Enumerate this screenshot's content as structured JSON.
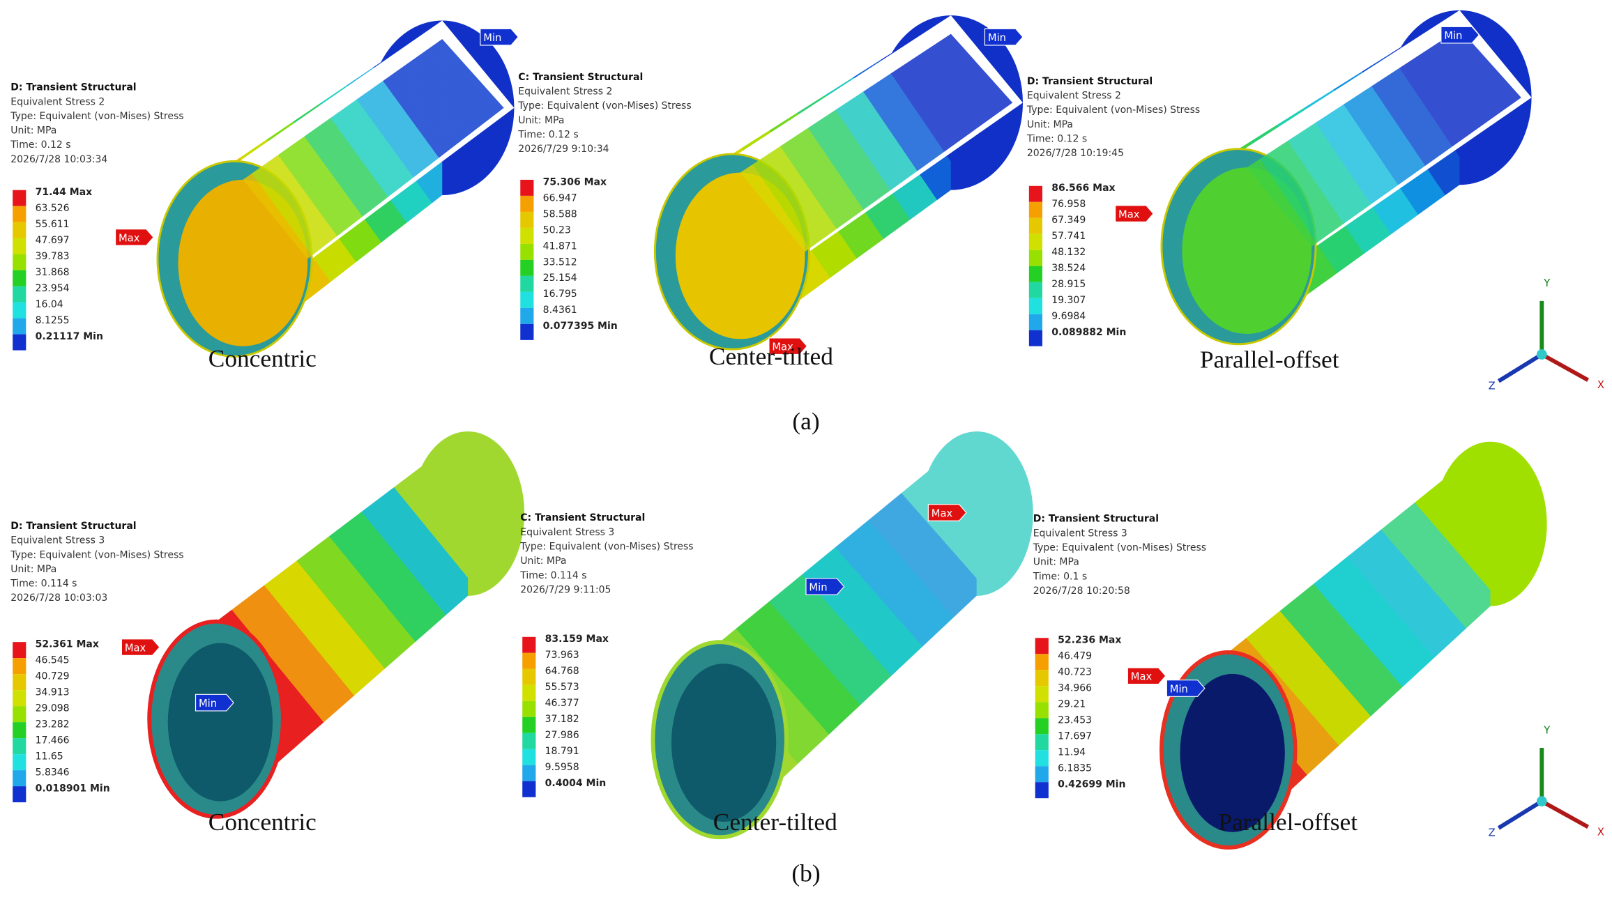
{
  "figure": {
    "rows": [
      {
        "label": "(a)",
        "axes": [
          "X",
          "Y",
          "Z"
        ],
        "panels": [
          {
            "header": [
              "D: Transient Structural",
              "Equivalent Stress 2",
              "Type: Equivalent (von-Mises) Stress",
              "Unit: MPa",
              "Time: 0.12 s",
              "2026/7/28 10:03:34"
            ],
            "legend": [
              "71.44 Max",
              "63.526",
              "55.611",
              "47.697",
              "39.783",
              "31.868",
              "23.954",
              "16.04",
              "8.1255",
              "0.21117 Min"
            ],
            "max_tag": "Max",
            "min_tag": "Min",
            "caption": "Concentric"
          },
          {
            "header": [
              "C: Transient Structural",
              "Equivalent Stress 2",
              "Type: Equivalent (von-Mises) Stress",
              "Unit: MPa",
              "Time: 0.12 s",
              "2026/7/29 9:10:34"
            ],
            "legend": [
              "75.306 Max",
              "66.947",
              "58.588",
              "50.23",
              "41.871",
              "33.512",
              "25.154",
              "16.795",
              "8.4361",
              "0.077395 Min"
            ],
            "max_tag": "Max",
            "min_tag": "Min",
            "caption": "Center-tilted"
          },
          {
            "header": [
              "D: Transient Structural",
              "Equivalent Stress 2",
              "Type: Equivalent (von-Mises) Stress",
              "Unit: MPa",
              "Time: 0.12 s",
              "2026/7/28 10:19:45"
            ],
            "legend": [
              "86.566 Max",
              "76.958",
              "67.349",
              "57.741",
              "48.132",
              "38.524",
              "28.915",
              "19.307",
              "9.6984",
              "0.089882 Min"
            ],
            "max_tag": "Max",
            "min_tag": "Min",
            "caption": "Parallel-offset"
          }
        ]
      },
      {
        "label": "(b)",
        "axes": [
          "X",
          "Y",
          "Z"
        ],
        "panels": [
          {
            "header": [
              "D: Transient Structural",
              "Equivalent Stress 3",
              "Type: Equivalent (von-Mises) Stress",
              "Unit: MPa",
              "Time: 0.114 s",
              "2026/7/28 10:03:03"
            ],
            "legend": [
              "52.361 Max",
              "46.545",
              "40.729",
              "34.913",
              "29.098",
              "23.282",
              "17.466",
              "11.65",
              "5.8346",
              "0.018901 Min"
            ],
            "max_tag": "Max",
            "min_tag": "Min",
            "caption": "Concentric"
          },
          {
            "header": [
              "C: Transient Structural",
              "Equivalent Stress 3",
              "Type: Equivalent (von-Mises) Stress",
              "Unit: MPa",
              "Time: 0.114 s",
              "2026/7/29 9:11:05"
            ],
            "legend": [
              "83.159 Max",
              "73.963",
              "64.768",
              "55.573",
              "46.377",
              "37.182",
              "27.986",
              "18.791",
              "9.5958",
              "0.4004 Min"
            ],
            "max_tag": "Max",
            "min_tag": "Min",
            "caption": "Center-tilted"
          },
          {
            "header": [
              "D: Transient Structural",
              "Equivalent Stress 3",
              "Type: Equivalent (von-Mises) Stress",
              "Unit: MPa",
              "Time: 0.1 s",
              "2026/7/28 10:20:58"
            ],
            "legend": [
              "52.236 Max",
              "46.479",
              "40.723",
              "34.966",
              "29.21",
              "23.453",
              "17.697",
              "11.94",
              "6.1835",
              "0.42699 Min"
            ],
            "max_tag": "Max",
            "min_tag": "Min",
            "caption": "Parallel-offset"
          }
        ]
      }
    ]
  }
}
